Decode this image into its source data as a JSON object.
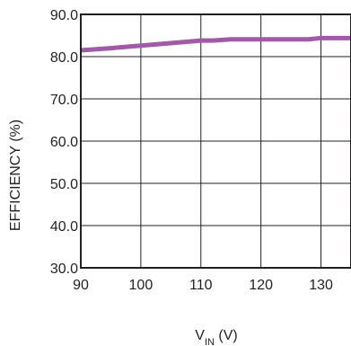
{
  "chart_data": {
    "type": "line",
    "title": "",
    "xlabel": {
      "main": "V",
      "sub": "IN",
      "unit": " (V)"
    },
    "ylabel": "EFFICIENCY (%)",
    "xlim": [
      90,
      135
    ],
    "ylim": [
      30,
      90
    ],
    "x_ticks": [
      90,
      100,
      110,
      120,
      130
    ],
    "x_tick_labels": [
      "90",
      "100",
      "110",
      "120",
      "130"
    ],
    "y_ticks": [
      30,
      40,
      50,
      60,
      70,
      80,
      90
    ],
    "y_tick_labels": [
      "30.0",
      "40.0",
      "50.0",
      "60.0",
      "70.0",
      "80.0",
      "90.0"
    ],
    "grid": true,
    "series": [
      {
        "color": "#a05aa8",
        "x": [
          90,
          95,
          100,
          105,
          110,
          112,
          115,
          120,
          125,
          128,
          130,
          135
        ],
        "y": [
          81.5,
          82.0,
          82.6,
          83.2,
          83.8,
          83.8,
          84.1,
          84.1,
          84.1,
          84.1,
          84.4,
          84.4
        ]
      }
    ]
  }
}
